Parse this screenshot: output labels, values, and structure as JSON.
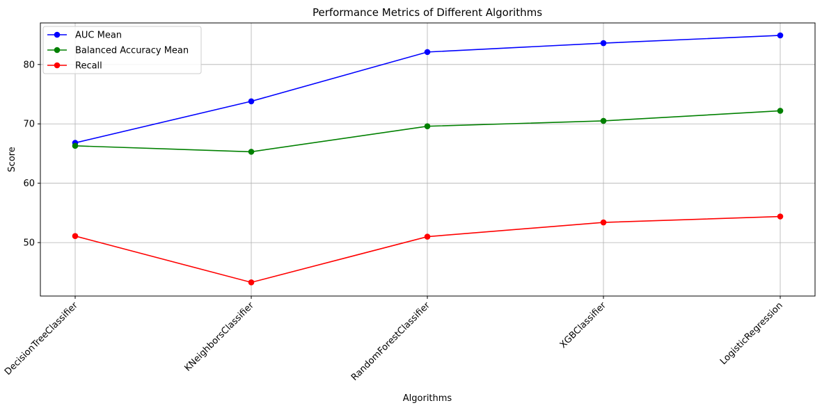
{
  "chart_data": {
    "type": "line",
    "title": "Performance Metrics of Different Algorithms",
    "xlabel": "Algorithms",
    "ylabel": "Score",
    "categories": [
      "DecisionTreeClassifier",
      "KNeighborsClassifier",
      "RandomForestClassifier",
      "XGBClassifier",
      "LogisticRegression"
    ],
    "series": [
      {
        "name": "AUC Mean",
        "color": "#0000ff",
        "values": [
          66.8,
          73.8,
          82.1,
          83.6,
          84.9
        ]
      },
      {
        "name": "Balanced Accuracy Mean",
        "color": "#008000",
        "values": [
          66.3,
          65.3,
          69.6,
          70.5,
          72.2
        ]
      },
      {
        "name": "Recall",
        "color": "#ff0000",
        "values": [
          51.1,
          43.3,
          51.0,
          53.4,
          54.4
        ]
      }
    ],
    "ylim": [
      41.0,
      87.0
    ],
    "yticks": [
      50,
      60,
      70,
      80
    ],
    "grid": true,
    "legend": "top-left",
    "marker": "circle"
  }
}
